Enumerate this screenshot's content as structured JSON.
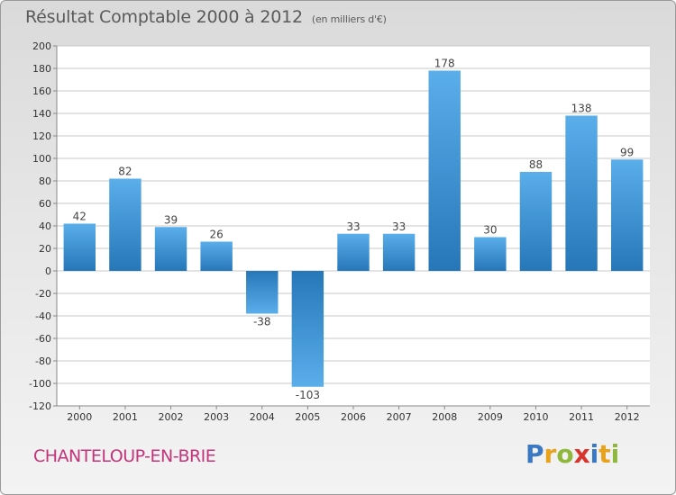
{
  "header": {
    "title": "Résultat Comptable 2000 à 2012",
    "subtitle": "(en milliers d'€)"
  },
  "footer": {
    "city": "CHANTELOUP-EN-BRIE",
    "brand": "Proxiti",
    "brand_letters": [
      {
        "char": "P",
        "color": "#3a78c4"
      },
      {
        "char": "r",
        "color": "#e8a21c"
      },
      {
        "char": "o",
        "color": "#8fb83a"
      },
      {
        "char": "x",
        "color": "#d8342c"
      },
      {
        "char": "i",
        "color": "#3a78c4"
      },
      {
        "char": "t",
        "color": "#e8a21c"
      },
      {
        "char": "i",
        "color": "#8fb83a"
      }
    ]
  },
  "colors": {
    "bar_light": "#5aaeea",
    "bar_dark": "#2677b8",
    "grid": "#c8c8c8",
    "axis_text": "#333333"
  },
  "chart_data": {
    "type": "bar",
    "title": "Résultat Comptable 2000 à 2012",
    "subtitle": "(en milliers d'€)",
    "xlabel": "",
    "ylabel": "",
    "categories": [
      "2000",
      "2001",
      "2002",
      "2003",
      "2004",
      "2005",
      "2006",
      "2007",
      "2008",
      "2009",
      "2010",
      "2011",
      "2012"
    ],
    "values": [
      42,
      82,
      39,
      26,
      -38,
      -103,
      33,
      33,
      178,
      30,
      88,
      138,
      99
    ],
    "labels": [
      "42",
      "82",
      "39",
      "26",
      "-38",
      "-103",
      "33",
      "33",
      "178",
      "30",
      "88",
      "138",
      "99"
    ],
    "ylim": [
      -120,
      200
    ],
    "yticks": [
      200,
      180,
      160,
      140,
      120,
      100,
      80,
      60,
      40,
      20,
      0,
      -20,
      -40,
      -60,
      -80,
      -100,
      -120
    ],
    "grid": true,
    "legend": "none"
  }
}
